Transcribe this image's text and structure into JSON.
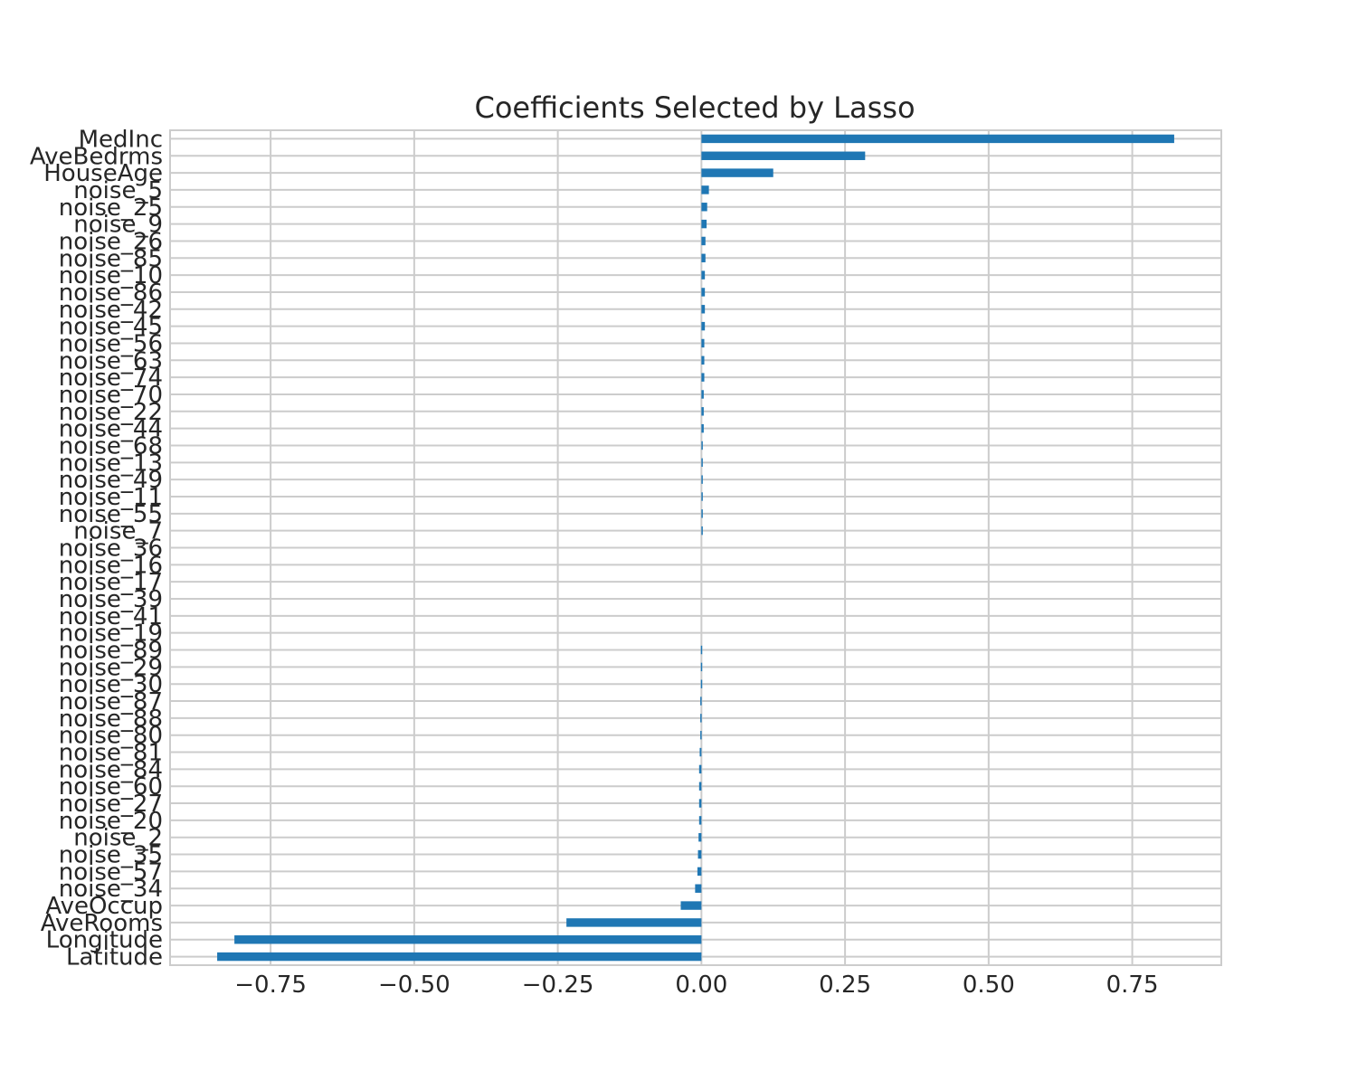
{
  "chart_data": {
    "type": "bar",
    "orientation": "horizontal",
    "title": "Coefficients Selected by Lasso",
    "xlabel": "",
    "ylabel": "",
    "xlim": [
      -0.925,
      0.905
    ],
    "xticks": [
      -0.75,
      -0.5,
      -0.25,
      0.0,
      0.25,
      0.5,
      0.75
    ],
    "xtick_labels": [
      "−0.75",
      "−0.50",
      "−0.25",
      "0.00",
      "0.25",
      "0.50",
      "0.75"
    ],
    "grid": true,
    "bar_color": "#1f77b4",
    "categories": [
      "MedInc",
      "AveBedrms",
      "HouseAge",
      "noise_5",
      "noise_25",
      "noise_9",
      "noise_26",
      "noise_85",
      "noise_10",
      "noise_86",
      "noise_42",
      "noise_45",
      "noise_56",
      "noise_63",
      "noise_74",
      "noise_70",
      "noise_22",
      "noise_44",
      "noise_68",
      "noise_13",
      "noise_49",
      "noise_11",
      "noise_55",
      "noise_7",
      "noise_36",
      "noise_16",
      "noise_17",
      "noise_39",
      "noise_41",
      "noise_19",
      "noise_89",
      "noise_29",
      "noise_30",
      "noise_87",
      "noise_88",
      "noise_80",
      "noise_81",
      "noise_84",
      "noise_60",
      "noise_27",
      "noise_20",
      "noise_2",
      "noise_35",
      "noise_57",
      "noise_34",
      "AveOccup",
      "AveRooms",
      "Longitude",
      "Latitude"
    ],
    "values": [
      0.823,
      0.285,
      0.125,
      0.013,
      0.01,
      0.009,
      0.007,
      0.007,
      0.006,
      0.006,
      0.006,
      0.006,
      0.005,
      0.005,
      0.005,
      0.004,
      0.004,
      0.004,
      0.002,
      0.002,
      0.001,
      0.001,
      0.001,
      0.001,
      0.0,
      0.0,
      0.0,
      0.0,
      0.0,
      0.0,
      -0.001,
      -0.001,
      -0.001,
      -0.002,
      -0.002,
      -0.002,
      -0.003,
      -0.004,
      -0.004,
      -0.004,
      -0.004,
      -0.005,
      -0.006,
      -0.007,
      -0.011,
      -0.036,
      -0.235,
      -0.813,
      -0.843
    ]
  }
}
